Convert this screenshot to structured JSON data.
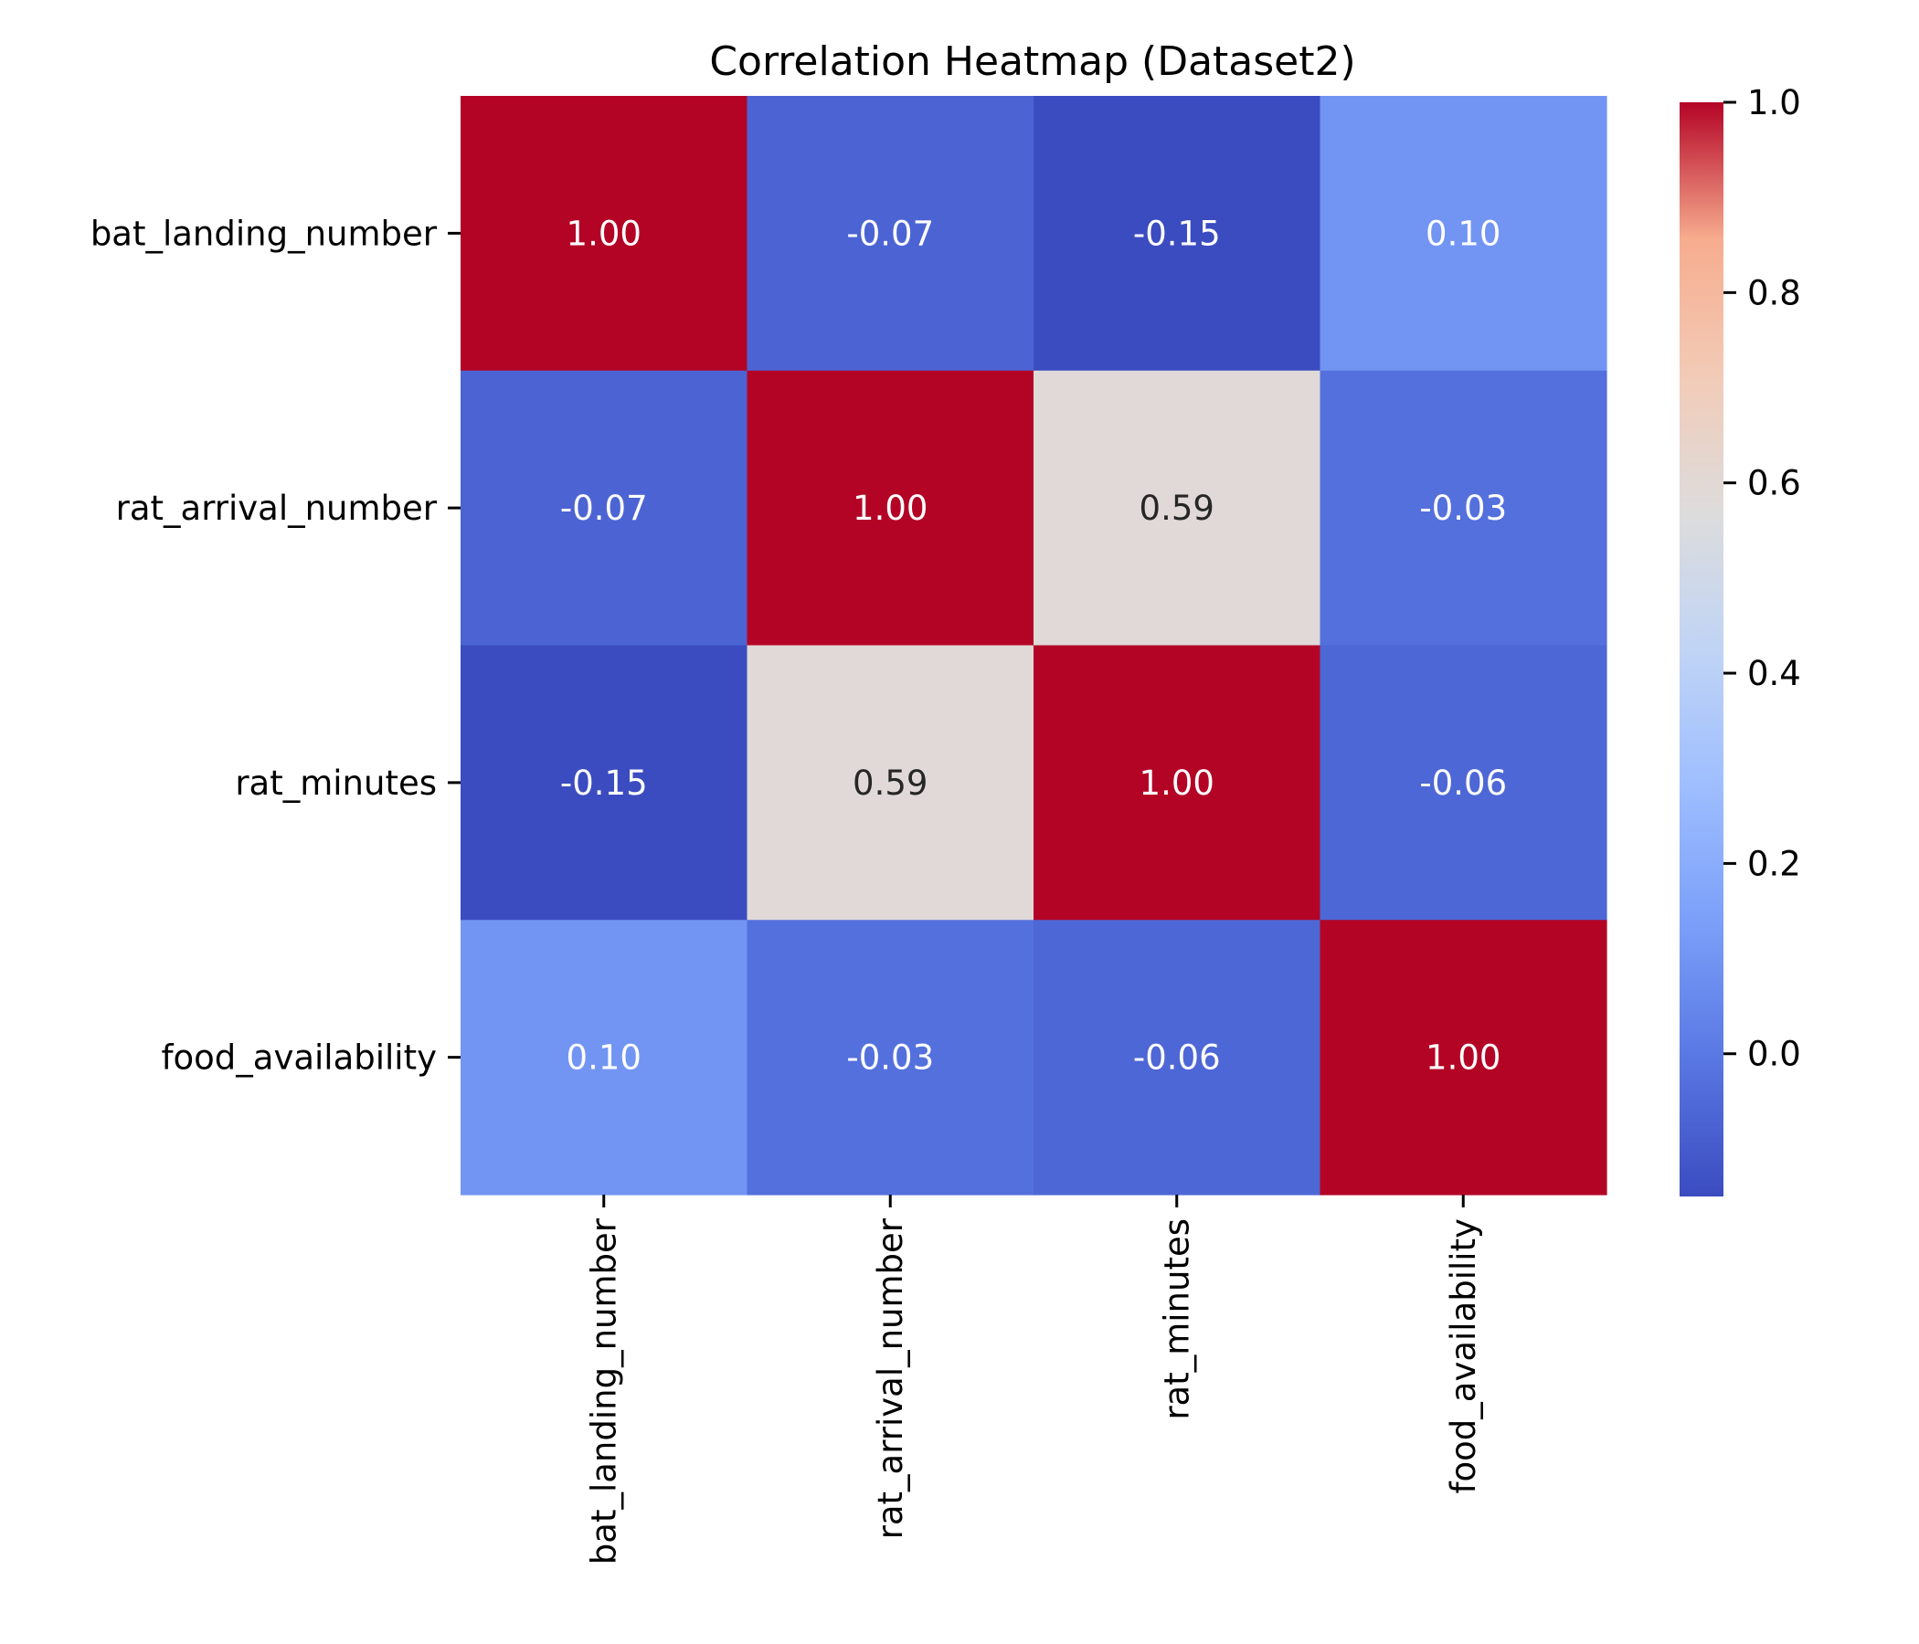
{
  "chart_data": {
    "type": "heatmap",
    "title": "Correlation Heatmap (Dataset2)",
    "row_labels": [
      "bat_landing_number",
      "rat_arrival_number",
      "rat_minutes",
      "food_availability"
    ],
    "col_labels": [
      "bat_landing_number",
      "rat_arrival_number",
      "rat_minutes",
      "food_availability"
    ],
    "values": [
      [
        1.0,
        -0.07,
        -0.15,
        0.1
      ],
      [
        -0.07,
        1.0,
        0.59,
        -0.03
      ],
      [
        -0.15,
        0.59,
        1.0,
        -0.06
      ],
      [
        0.1,
        -0.03,
        -0.06,
        1.0
      ]
    ],
    "annotations": [
      [
        "1.00",
        "-0.07",
        "-0.15",
        "0.10"
      ],
      [
        "-0.07",
        "1.00",
        "0.59",
        "-0.03"
      ],
      [
        "-0.15",
        "0.59",
        "1.00",
        "-0.06"
      ],
      [
        "0.10",
        "-0.03",
        "-0.06",
        "1.00"
      ]
    ],
    "colormap": "coolwarm",
    "colorbar": {
      "range": [
        -0.15,
        1.0
      ],
      "ticks": [
        0.0,
        0.2,
        0.4,
        0.6,
        0.8,
        1.0
      ],
      "tick_labels": [
        "0.0",
        "0.2",
        "0.4",
        "0.6",
        "0.8",
        "1.0"
      ]
    }
  }
}
